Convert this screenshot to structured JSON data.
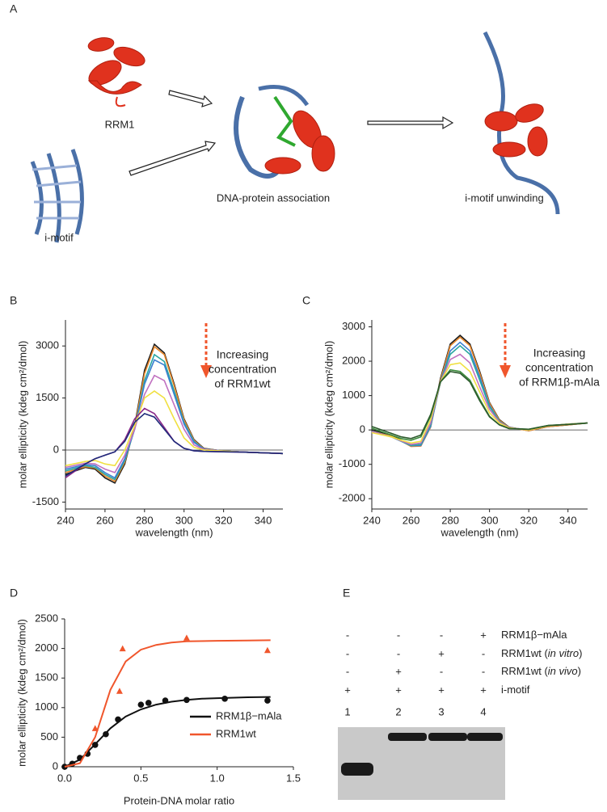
{
  "panel_labels": [
    "A",
    "B",
    "C",
    "D",
    "E"
  ],
  "panel_a": {
    "labels": [
      "RRM1",
      "i-motif",
      "DNA-protein association",
      "i-motif unwinding"
    ]
  },
  "chart_data": [
    {
      "type": "line",
      "ylabel": "molar ellipticity (kdeg cm²/dmol)",
      "xlabel": "wavelength (nm)",
      "annotation": [
        "Increasing",
        "concentration",
        "of RRM1wt"
      ],
      "annotation_color": "#f0562c",
      "x": [
        240,
        250,
        255,
        260,
        265,
        270,
        275,
        280,
        285,
        290,
        295,
        300,
        305,
        310,
        320,
        330,
        340,
        350
      ],
      "xlim": [
        240,
        350
      ],
      "xticks": [
        240,
        260,
        280,
        300,
        320,
        340
      ],
      "ylim": [
        -1700,
        3750
      ],
      "yticks": [
        -1500,
        0,
        1500,
        3000
      ],
      "zero_line": true,
      "series": [
        {
          "color": "#1a1a1a",
          "values": [
            -700,
            -500,
            -550,
            -800,
            -950,
            -400,
            700,
            2300,
            3050,
            2800,
            1900,
            900,
            300,
            50,
            -30,
            -60,
            -80,
            -100
          ]
        },
        {
          "color": "#e8872a",
          "values": [
            -650,
            -480,
            -520,
            -750,
            -900,
            -350,
            650,
            2200,
            2980,
            2750,
            1850,
            870,
            280,
            40,
            -30,
            -60,
            -80,
            -100
          ]
        },
        {
          "color": "#2aa6a0",
          "values": [
            -600,
            -450,
            -500,
            -700,
            -850,
            -300,
            600,
            2000,
            2750,
            2550,
            1700,
            800,
            250,
            30,
            -30,
            -60,
            -80,
            -100
          ]
        },
        {
          "color": "#3b7fd0",
          "values": [
            -550,
            -420,
            -450,
            -650,
            -800,
            -250,
            600,
            1900,
            2600,
            2450,
            1600,
            750,
            220,
            30,
            -30,
            -60,
            -80,
            -100
          ]
        },
        {
          "color": "#c070c0",
          "values": [
            -500,
            -380,
            -400,
            -550,
            -650,
            -150,
            600,
            1600,
            2150,
            2000,
            1300,
            600,
            150,
            20,
            -30,
            -60,
            -80,
            -100
          ]
        },
        {
          "color": "#f0e040",
          "values": [
            -450,
            -330,
            -300,
            -400,
            -450,
            0,
            700,
            1500,
            1700,
            1500,
            900,
            350,
            80,
            0,
            -30,
            -60,
            -80,
            -100
          ]
        },
        {
          "color": "#8a2a8a",
          "values": [
            -800,
            -400,
            -250,
            -150,
            -50,
            300,
            900,
            1200,
            1050,
            650,
            250,
            50,
            -20,
            -40,
            -50,
            -60,
            -80,
            -100
          ]
        },
        {
          "color": "#1f2a7a",
          "values": [
            -750,
            -400,
            -250,
            -150,
            -50,
            250,
            800,
            1050,
            950,
            600,
            250,
            50,
            -20,
            -40,
            -50,
            -60,
            -80,
            -100
          ]
        }
      ]
    },
    {
      "type": "line",
      "ylabel": "molar ellipticity (kdeg cm²/dmol)",
      "xlabel": "wavelength (nm)",
      "annotation": [
        "Increasing",
        "concentration",
        "of RRM1β-mAla"
      ],
      "annotation_color": "#f0562c",
      "x": [
        240,
        250,
        255,
        260,
        265,
        270,
        275,
        280,
        285,
        290,
        295,
        300,
        305,
        310,
        320,
        330,
        340,
        350
      ],
      "xlim": [
        240,
        350
      ],
      "xticks": [
        240,
        260,
        280,
        300,
        320,
        340
      ],
      "ylim": [
        -2300,
        3200
      ],
      "yticks": [
        -2000,
        -1000,
        0,
        1000,
        2000,
        3000
      ],
      "zero_line": true,
      "series": [
        {
          "color": "#1a1a1a",
          "values": [
            0,
            -150,
            -300,
            -450,
            -450,
            100,
            1500,
            2500,
            2750,
            2500,
            1700,
            800,
            300,
            80,
            -20,
            100,
            150,
            200
          ]
        },
        {
          "color": "#e8872a",
          "values": [
            -50,
            -180,
            -320,
            -480,
            -470,
            80,
            1450,
            2450,
            2700,
            2450,
            1650,
            780,
            280,
            70,
            -20,
            100,
            150,
            200
          ]
        },
        {
          "color": "#3b7fd0",
          "values": [
            -50,
            -200,
            -330,
            -460,
            -450,
            100,
            1400,
            2300,
            2550,
            2300,
            1550,
            720,
            250,
            60,
            0,
            120,
            170,
            200
          ]
        },
        {
          "color": "#2aa6a0",
          "values": [
            -50,
            -200,
            -330,
            -450,
            -420,
            150,
            1400,
            2200,
            2450,
            2200,
            1450,
            680,
            250,
            70,
            0,
            120,
            170,
            200
          ]
        },
        {
          "color": "#c070c0",
          "values": [
            -50,
            -200,
            -320,
            -420,
            -380,
            200,
            1400,
            2050,
            2200,
            1950,
            1250,
            600,
            230,
            70,
            0,
            120,
            170,
            200
          ]
        },
        {
          "color": "#f0e040",
          "values": [
            -80,
            -200,
            -300,
            -380,
            -330,
            300,
            1400,
            1900,
            1950,
            1700,
            1100,
            500,
            200,
            60,
            0,
            120,
            170,
            200
          ]
        },
        {
          "color": "#3c8a3c",
          "values": [
            50,
            -150,
            -250,
            -300,
            -200,
            400,
            1400,
            1750,
            1700,
            1450,
            900,
            400,
            150,
            40,
            20,
            130,
            160,
            200
          ]
        },
        {
          "color": "#2c5a2c",
          "values": [
            100,
            -100,
            -200,
            -250,
            -150,
            450,
            1400,
            1700,
            1650,
            1400,
            850,
            380,
            150,
            40,
            20,
            130,
            160,
            200
          ]
        }
      ]
    },
    {
      "type": "scatter",
      "ylabel": "molar ellipticity (kdeg cm²/dmol)",
      "xlabel": "Protein-DNA molar ratio",
      "xlim": [
        0,
        1.5
      ],
      "xticks": [
        {
          "value": 0,
          "label": "0.0"
        },
        0.5,
        {
          "value": 1,
          "label": "1.0"
        },
        1.5
      ],
      "ylim": [
        0,
        2500
      ],
      "yticks": [
        0,
        500,
        1000,
        1500,
        2000,
        2500
      ],
      "legend": "lower right",
      "series": [
        {
          "name": "RRM1β−mAla",
          "color": "#111111",
          "marker": "circle",
          "x": [
            0,
            0.05,
            0.1,
            0.15,
            0.2,
            0.27,
            0.35,
            0.5,
            0.55,
            0.66,
            0.8,
            1.05,
            1.33
          ],
          "values": [
            0,
            50,
            150,
            220,
            370,
            550,
            800,
            1050,
            1080,
            1120,
            1130,
            1150,
            1120
          ],
          "fit_x": [
            0,
            0.1,
            0.2,
            0.3,
            0.4,
            0.5,
            0.6,
            0.7,
            0.8,
            0.9,
            1.0,
            1.2,
            1.35
          ],
          "fit_values": [
            0,
            120,
            380,
            650,
            850,
            970,
            1050,
            1100,
            1130,
            1150,
            1160,
            1175,
            1180
          ]
        },
        {
          "name": "RRM1wt",
          "color": "#f0562c",
          "marker": "triangle",
          "x": [
            0.2,
            0.36,
            0.38,
            0.8,
            1.33
          ],
          "values": [
            650,
            1280,
            2000,
            2180,
            1970
          ],
          "fit_x": [
            0,
            0.1,
            0.2,
            0.3,
            0.4,
            0.5,
            0.6,
            0.7,
            0.8,
            1.0,
            1.2,
            1.35
          ],
          "fit_values": [
            0,
            60,
            500,
            1300,
            1780,
            1980,
            2060,
            2100,
            2120,
            2130,
            2135,
            2140
          ]
        }
      ]
    }
  ],
  "gel": {
    "rows": [
      {
        "label": [
          "RRM1β−mAla"
        ],
        "signs": [
          "-",
          "-",
          "-",
          "+"
        ]
      },
      {
        "label": [
          "RRM1wt (",
          "in vitro",
          ")"
        ],
        "signs": [
          "-",
          "-",
          "+",
          "-"
        ]
      },
      {
        "label": [
          "RRM1wt (",
          "in vivo",
          ")"
        ],
        "signs": [
          "-",
          "+",
          "-",
          "-"
        ]
      },
      {
        "label": [
          "i-motif"
        ],
        "signs": [
          "+",
          "+",
          "+",
          "+"
        ]
      }
    ],
    "lanes": [
      "1",
      "2",
      "3",
      "4"
    ]
  }
}
